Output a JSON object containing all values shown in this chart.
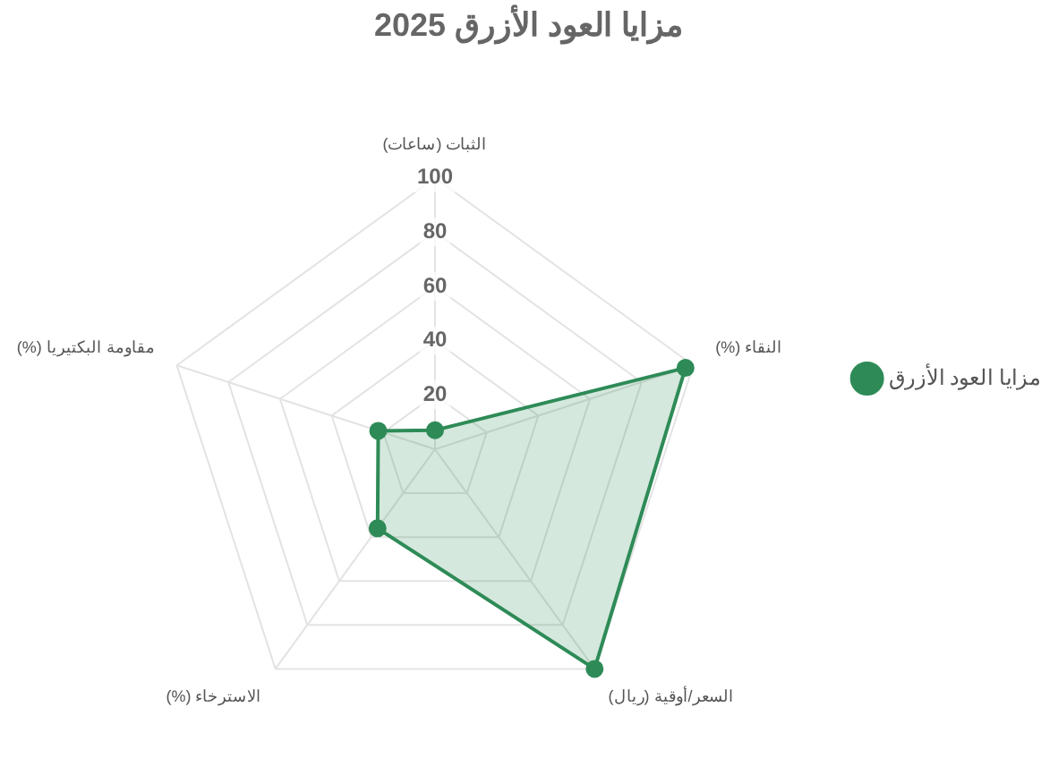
{
  "chart_data": {
    "type": "radar",
    "title": "مزايا العود الأزرق 2025",
    "categories": [
      "الثبات (ساعات)",
      "(%) النقاء",
      "السعر/أوقية (ريال)",
      "(%) الاسترخاء",
      "(%) مقاومة البكتيريا"
    ],
    "series": [
      {
        "name": "مزايا العود الأزرق",
        "color": "#2e8b57",
        "values": [
          7,
          97,
          100,
          36,
          22
        ]
      }
    ],
    "ylim": [
      0,
      100
    ],
    "yticks": [
      20,
      40,
      60,
      80,
      100
    ],
    "grid": true,
    "legend": "right",
    "marker": "circle"
  }
}
